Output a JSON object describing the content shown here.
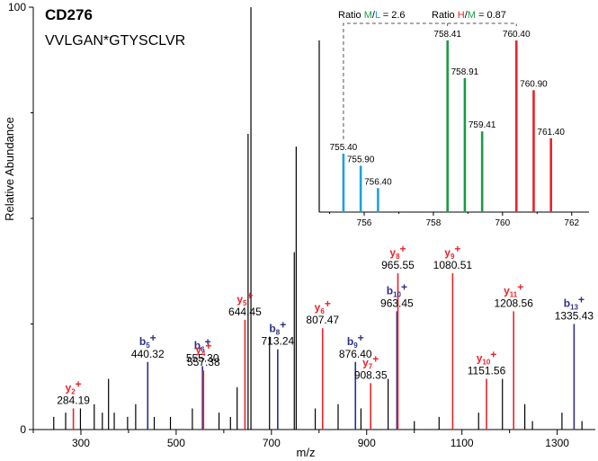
{
  "chart_data": {
    "type": "bar",
    "title": "CD276",
    "subtitle": "VVLGAN*GTYSCLVR",
    "xlabel": "m/z",
    "ylabel": "Relative Abundance",
    "xlim": [
      200,
      1380
    ],
    "ylim": [
      0,
      100
    ],
    "x_ticks": [
      300,
      500,
      700,
      900,
      1100,
      1300
    ],
    "y_ticks": [
      0,
      100
    ],
    "colors": {
      "y_ion": "#e8232a",
      "b_ion": "#2b2f86",
      "other": "#000000"
    },
    "background_peaks": [
      {
        "x": 243,
        "y": 3
      },
      {
        "x": 268,
        "y": 4
      },
      {
        "x": 299,
        "y": 5
      },
      {
        "x": 328,
        "y": 6
      },
      {
        "x": 345,
        "y": 4
      },
      {
        "x": 358,
        "y": 12
      },
      {
        "x": 370,
        "y": 4
      },
      {
        "x": 398,
        "y": 3
      },
      {
        "x": 415,
        "y": 6
      },
      {
        "x": 454,
        "y": 3
      },
      {
        "x": 488,
        "y": 3
      },
      {
        "x": 534,
        "y": 5
      },
      {
        "x": 590,
        "y": 4
      },
      {
        "x": 614,
        "y": 3
      },
      {
        "x": 628,
        "y": 10
      },
      {
        "x": 651,
        "y": 70
      },
      {
        "x": 657,
        "y": 100
      },
      {
        "x": 696,
        "y": 22
      },
      {
        "x": 748,
        "y": 42
      },
      {
        "x": 752,
        "y": 67
      },
      {
        "x": 792,
        "y": 5
      },
      {
        "x": 840,
        "y": 6
      },
      {
        "x": 888,
        "y": 5
      },
      {
        "x": 945,
        "y": 12
      },
      {
        "x": 1000,
        "y": 2
      },
      {
        "x": 1052,
        "y": 3
      },
      {
        "x": 1135,
        "y": 4
      },
      {
        "x": 1185,
        "y": 12
      },
      {
        "x": 1232,
        "y": 6
      },
      {
        "x": 1248,
        "y": 2
      },
      {
        "x": 1310,
        "y": 4
      },
      {
        "x": 1352,
        "y": 2
      }
    ],
    "annotated_peaks": [
      {
        "ion": "y",
        "num": "2",
        "x": 284.19,
        "y": 5,
        "mz": "284.19"
      },
      {
        "ion": "b",
        "num": "5",
        "x": 440.32,
        "y": 16,
        "mz": "440.32"
      },
      {
        "ion": "b",
        "num": "6",
        "x": 555.3,
        "y": 15,
        "mz": "555.30"
      },
      {
        "ion": "y",
        "num": "4",
        "x": 557.38,
        "y": 14,
        "mz": "557.38"
      },
      {
        "ion": "y",
        "num": "5",
        "x": 644.45,
        "y": 26,
        "mz": "644.45"
      },
      {
        "ion": "b",
        "num": "8",
        "x": 713.24,
        "y": 19,
        "mz": "713.24"
      },
      {
        "ion": "y",
        "num": "6",
        "x": 807.47,
        "y": 24,
        "mz": "807.47"
      },
      {
        "ion": "b",
        "num": "9",
        "x": 876.4,
        "y": 16,
        "mz": "876.40"
      },
      {
        "ion": "y",
        "num": "7",
        "x": 908.35,
        "y": 11,
        "mz": "908.35"
      },
      {
        "ion": "b",
        "num": "10",
        "x": 963.45,
        "y": 28,
        "mz": "963.45"
      },
      {
        "ion": "y",
        "num": "8",
        "x": 965.55,
        "y": 37,
        "mz": "965.55"
      },
      {
        "ion": "y",
        "num": "9",
        "x": 1080.51,
        "y": 37,
        "mz": "1080.51"
      },
      {
        "ion": "y",
        "num": "10",
        "x": 1151.56,
        "y": 12,
        "mz": "1151.56"
      },
      {
        "ion": "y",
        "num": "11",
        "x": 1208.56,
        "y": 28,
        "mz": "1208.56"
      },
      {
        "ion": "b",
        "num": "13",
        "x": 1335.43,
        "y": 25,
        "mz": "1335.43"
      }
    ],
    "inset": {
      "xlim": [
        754.7,
        762.5
      ],
      "ylim": [
        0,
        100
      ],
      "x_ticks": [
        756,
        758,
        760,
        762
      ],
      "peaks": [
        {
          "x": 755.4,
          "y": 34,
          "label": "755.40",
          "color": "#1ea1dc"
        },
        {
          "x": 755.9,
          "y": 27,
          "label": "755.90",
          "color": "#1ea1dc"
        },
        {
          "x": 756.4,
          "y": 14,
          "label": "756.40",
          "color": "#1ea1dc"
        },
        {
          "x": 758.41,
          "y": 100,
          "label": "758.41",
          "color": "#1c9a47"
        },
        {
          "x": 758.91,
          "y": 78,
          "label": "758.91",
          "color": "#1c9a47"
        },
        {
          "x": 759.41,
          "y": 47,
          "label": "759.41",
          "color": "#1c9a47"
        },
        {
          "x": 760.4,
          "y": 100,
          "label": "760.40",
          "color": "#e8232a"
        },
        {
          "x": 760.9,
          "y": 71,
          "label": "760.90",
          "color": "#e8232a"
        },
        {
          "x": 761.4,
          "y": 43,
          "label": "761.40",
          "color": "#e8232a"
        }
      ],
      "ratio_ml": {
        "prefix": "Ratio ",
        "a": "M",
        "sep": "/",
        "b": "L",
        "suffix": " = 2.6",
        "a_color": "#1c9a47",
        "b_color": "#1ea1dc"
      },
      "ratio_hm": {
        "prefix": "Ratio ",
        "a": "H",
        "sep": "/",
        "b": "M",
        "suffix": " = 0.87",
        "a_color": "#e8232a",
        "b_color": "#1c9a47"
      }
    }
  }
}
